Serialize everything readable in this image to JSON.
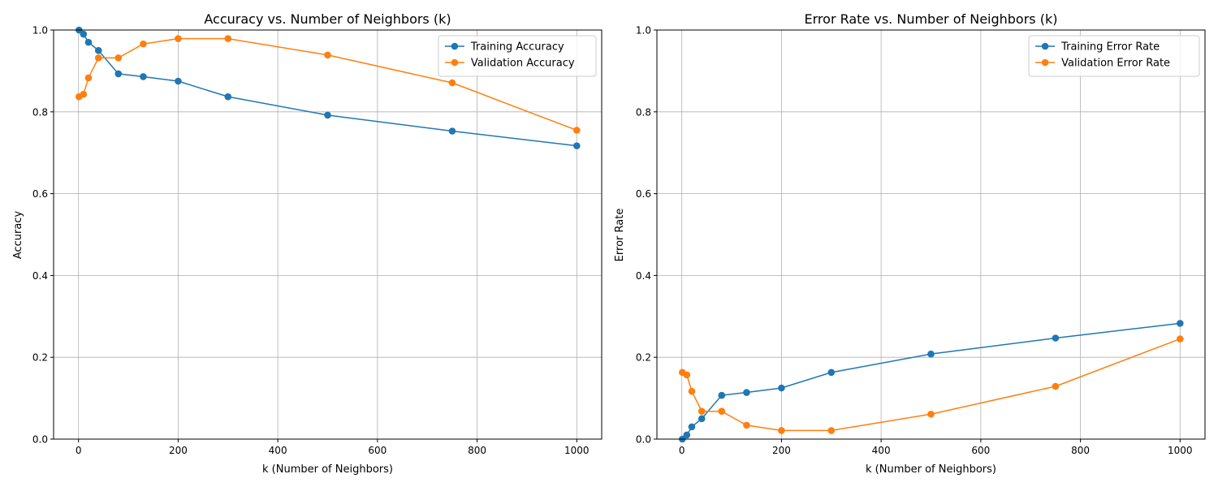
{
  "colors": {
    "training": "#1f77b4",
    "validation": "#ff7f0e"
  },
  "chart_data": [
    {
      "type": "line",
      "title": "Accuracy vs. Number of Neighbors (k)",
      "xlabel": "k (Number of Neighbors)",
      "ylabel": "Accuracy",
      "xlim": [
        -50,
        1050
      ],
      "ylim": [
        0,
        1.0
      ],
      "xticks": [
        0,
        200,
        400,
        600,
        800,
        1000
      ],
      "yticks": [
        0.0,
        0.2,
        0.4,
        0.6,
        0.8,
        1.0
      ],
      "xtick_labels": [
        "0",
        "200",
        "400",
        "600",
        "800",
        "1000"
      ],
      "ytick_labels": [
        "0.0",
        "0.2",
        "0.4",
        "0.6",
        "0.8",
        "1.0"
      ],
      "grid": true,
      "legend": "top-right",
      "x": [
        1,
        10,
        20,
        40,
        80,
        130,
        200,
        300,
        500,
        750,
        1000
      ],
      "series": [
        {
          "name": "Training Accuracy",
          "color_key": "training",
          "values": [
            1.0,
            0.99,
            0.97,
            0.95,
            0.893,
            0.886,
            0.875,
            0.837,
            0.792,
            0.753,
            0.717
          ]
        },
        {
          "name": "Validation Accuracy",
          "color_key": "validation",
          "values": [
            0.837,
            0.843,
            0.883,
            0.932,
            0.932,
            0.966,
            0.979,
            0.979,
            0.939,
            0.871,
            0.755
          ]
        }
      ]
    },
    {
      "type": "line",
      "title": "Error Rate vs. Number of Neighbors (k)",
      "xlabel": "k (Number of Neighbors)",
      "ylabel": "Error Rate",
      "xlim": [
        -50,
        1050
      ],
      "ylim": [
        0,
        1.0
      ],
      "xticks": [
        0,
        200,
        400,
        600,
        800,
        1000
      ],
      "yticks": [
        0.0,
        0.2,
        0.4,
        0.6,
        0.8,
        1.0
      ],
      "xtick_labels": [
        "0",
        "200",
        "400",
        "600",
        "800",
        "1000"
      ],
      "ytick_labels": [
        "0.0",
        "0.2",
        "0.4",
        "0.6",
        "0.8",
        "1.0"
      ],
      "grid": true,
      "legend": "top-right",
      "x": [
        1,
        10,
        20,
        40,
        80,
        130,
        200,
        300,
        500,
        750,
        1000
      ],
      "series": [
        {
          "name": "Training Error Rate",
          "color_key": "training",
          "values": [
            0.0,
            0.01,
            0.03,
            0.05,
            0.107,
            0.114,
            0.125,
            0.163,
            0.208,
            0.247,
            0.283
          ]
        },
        {
          "name": "Validation Error Rate",
          "color_key": "validation",
          "values": [
            0.163,
            0.157,
            0.117,
            0.068,
            0.068,
            0.034,
            0.021,
            0.021,
            0.061,
            0.129,
            0.245
          ]
        }
      ]
    }
  ]
}
